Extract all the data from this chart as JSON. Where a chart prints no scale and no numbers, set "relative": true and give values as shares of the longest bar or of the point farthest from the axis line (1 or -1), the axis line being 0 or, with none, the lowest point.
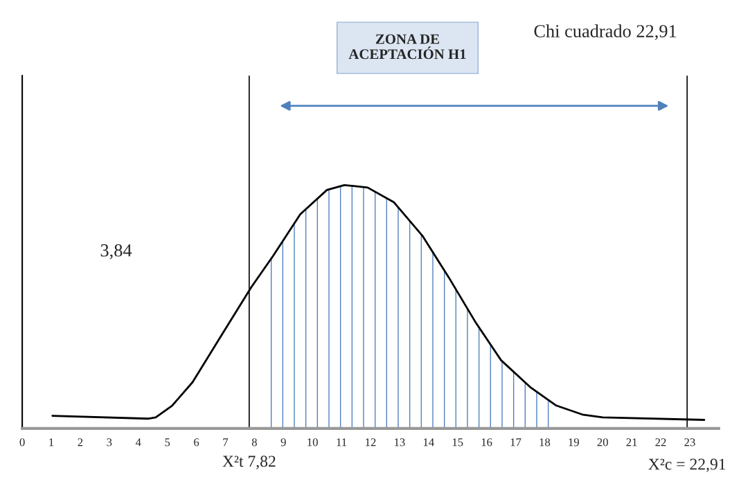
{
  "chart_data": {
    "type": "line",
    "relative": true,
    "x": [
      1.04,
      4.36,
      4.6,
      5.17,
      5.87,
      6.8,
      7.89,
      8.65,
      9.58,
      10.5,
      11.1,
      11.9,
      12.8,
      13.8,
      14.7,
      15.6,
      16.5,
      17.5,
      18.4,
      19.3,
      20.0,
      23.5
    ],
    "series": [
      {
        "color": "#000000",
        "values": [
          0.052,
          0.04,
          0.045,
          0.094,
          0.19,
          0.37,
          0.58,
          0.71,
          0.88,
          0.98,
          1.0,
          0.99,
          0.93,
          0.79,
          0.62,
          0.44,
          0.28,
          0.17,
          0.094,
          0.057,
          0.045,
          0.035
        ]
      }
    ],
    "xlim": [
      0,
      24
    ],
    "xticks": [
      0,
      1,
      2,
      3,
      4,
      5,
      6,
      7,
      8,
      9,
      10,
      11,
      12,
      13,
      14,
      15,
      16,
      17,
      18,
      19,
      20,
      21,
      22,
      23
    ],
    "ref_lines": [
      {
        "axis": "x",
        "value": 7.82,
        "label": "X²t 7,82",
        "color": "#000000"
      },
      {
        "axis": "x",
        "value": 22.91,
        "label": "X²c = 22,91",
        "color": "#000000"
      }
    ],
    "bands": [
      {
        "axis": "x",
        "from": 8.4,
        "to": 18.2,
        "color": "#4f81bd"
      }
    ],
    "annotations": [
      "ZONA DE\nACEPTACIÓN H1",
      "Chi cuadrado 22,91",
      "3,84"
    ],
    "grid": false,
    "legend": false
  }
}
